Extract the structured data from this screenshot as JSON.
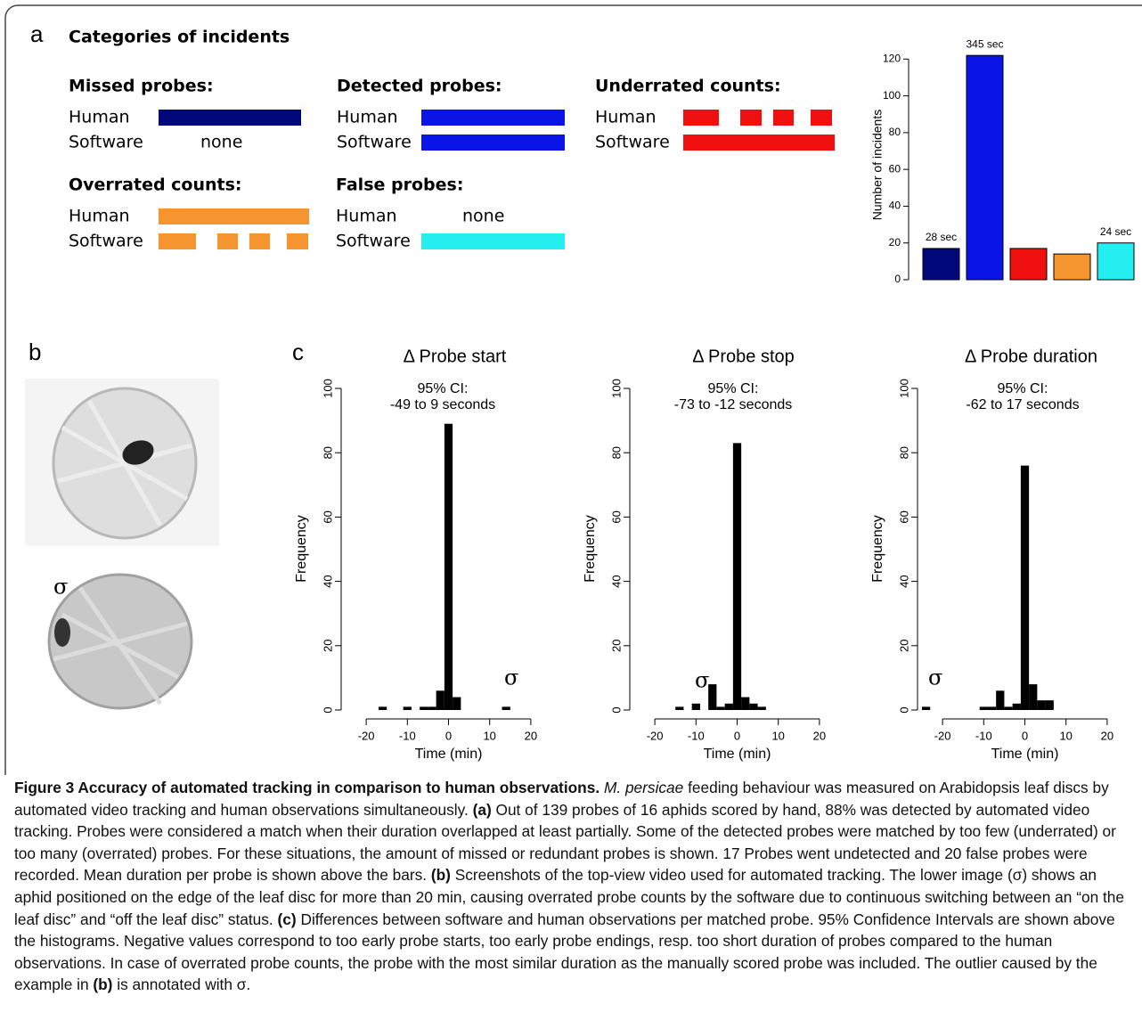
{
  "panel_a": {
    "label": "a",
    "title": "Categories of incidents",
    "groups": [
      {
        "title": "Missed probes:",
        "rows": [
          {
            "name": "Human"
          },
          {
            "name": "Software",
            "note": "none"
          }
        ]
      },
      {
        "title": "Detected probes:",
        "rows": [
          {
            "name": "Human"
          },
          {
            "name": "Software"
          }
        ]
      },
      {
        "title": "Underrated counts:",
        "rows": [
          {
            "name": "Human"
          },
          {
            "name": "Software"
          }
        ]
      },
      {
        "title": "Overrated counts:",
        "rows": [
          {
            "name": "Human"
          },
          {
            "name": "Software"
          }
        ]
      },
      {
        "title": "False probes:",
        "rows": [
          {
            "name": "Human",
            "note": "none"
          },
          {
            "name": "Software"
          }
        ]
      }
    ]
  },
  "panel_b": {
    "label": "b",
    "sigma": "σ"
  },
  "panel_c": {
    "label": "c"
  },
  "chart_data": [
    {
      "type": "bar",
      "ylabel": "Number of incidents",
      "categories": [
        null,
        null,
        null,
        null,
        null
      ],
      "values": [
        17,
        122,
        17,
        14,
        20
      ],
      "colors": [
        "#00087a",
        "#0a14e6",
        "#f01010",
        "#f59530",
        "#25eef0"
      ],
      "bar_labels": [
        "28 sec",
        "345 sec",
        null,
        null,
        "24 sec"
      ],
      "ylim": [
        0,
        125
      ],
      "yticks": [
        0,
        20,
        40,
        60,
        80,
        100,
        120
      ]
    },
    {
      "type": "histogram",
      "title": "Δ Probe start",
      "annotation": [
        "95% CI:",
        "-49 to 9 seconds"
      ],
      "sigma": "σ",
      "xlabel": "Time (min)",
      "ylabel": "Frequency",
      "bins": [
        -25,
        -23,
        -21,
        -19,
        -17,
        -15,
        -13,
        -11,
        -9,
        -7,
        -5,
        -3,
        -1,
        1,
        3,
        5,
        7,
        9,
        11,
        13,
        15,
        17,
        19,
        21,
        23,
        25
      ],
      "values": [
        0,
        0,
        0,
        0,
        1,
        0,
        0,
        1,
        0,
        1,
        1,
        6,
        89,
        4,
        0,
        0,
        0,
        0,
        0,
        1,
        0,
        0,
        0,
        0,
        0
      ],
      "color": "#000000",
      "xlim": [
        -25,
        25
      ],
      "xticks": [
        -20,
        -10,
        0,
        10,
        20
      ],
      "ylim": [
        0,
        100
      ],
      "yticks": [
        0,
        20,
        40,
        60,
        80,
        100
      ]
    },
    {
      "type": "histogram",
      "title": "Δ Probe stop",
      "annotation": [
        "95% CI:",
        "-73 to -12 seconds"
      ],
      "sigma": "σ",
      "xlabel": "Time (min)",
      "ylabel": "Frequency",
      "bins": [
        -25,
        -23,
        -21,
        -19,
        -17,
        -15,
        -13,
        -11,
        -9,
        -7,
        -5,
        -3,
        -1,
        1,
        3,
        5,
        7,
        9,
        11,
        13,
        15,
        17,
        19,
        21,
        23,
        25
      ],
      "values": [
        0,
        0,
        0,
        0,
        0,
        1,
        0,
        2,
        0,
        8,
        1,
        2,
        83,
        4,
        2,
        1,
        0,
        0,
        0,
        0,
        0,
        0,
        0,
        0,
        0
      ],
      "color": "#000000",
      "xlim": [
        -25,
        25
      ],
      "xticks": [
        -20,
        -10,
        0,
        10,
        20
      ],
      "ylim": [
        0,
        100
      ],
      "yticks": [
        0,
        20,
        40,
        60,
        80,
        100
      ]
    },
    {
      "type": "histogram",
      "title": "Δ Probe duration",
      "annotation": [
        "95% CI:",
        "-62 to 17 seconds"
      ],
      "sigma": "σ",
      "xlabel": "Time (min)",
      "ylabel": "Frequency",
      "bins": [
        -25,
        -23,
        -21,
        -19,
        -17,
        -15,
        -13,
        -11,
        -9,
        -7,
        -5,
        -3,
        -1,
        1,
        3,
        5,
        7,
        9,
        11,
        13,
        15,
        17,
        19,
        21,
        23,
        25
      ],
      "values": [
        1,
        0,
        0,
        0,
        0,
        0,
        0,
        1,
        1,
        6,
        1,
        2,
        76,
        8,
        3,
        3,
        0,
        0,
        0,
        0,
        0,
        0,
        0,
        0,
        0
      ],
      "color": "#000000",
      "xlim": [
        -25,
        25
      ],
      "xticks": [
        -20,
        -10,
        0,
        10,
        20
      ],
      "ylim": [
        0,
        100
      ],
      "yticks": [
        0,
        20,
        40,
        60,
        80,
        100
      ]
    }
  ],
  "caption": [
    {
      "text": "Figure 3 Accuracy of automated tracking in comparison to human observations. ",
      "style": "bold"
    },
    {
      "text": "M. persicae",
      "style": "italic"
    },
    {
      "text": " feeding behaviour was measured on Arabidopsis leaf discs by automated video tracking and human observations simultaneously. "
    },
    {
      "text": "(a)",
      "style": "bold"
    },
    {
      "text": " Out of 139 probes of 16 aphids scored by hand, 88% was detected by automated video tracking. Probes were considered a match when their duration overlapped at least partially. Some of the detected probes were matched by too few (underrated) or too many (overrated) probes. For these situations, the amount of missed or redundant probes is shown. 17 Probes went undetected and 20 false probes were recorded. Mean duration per probe is shown above the bars. "
    },
    {
      "text": "(b)",
      "style": "bold"
    },
    {
      "text": " Screenshots of the top-view video used for automated tracking. The lower image (σ) shows an aphid positioned on the edge of the leaf disc for more than 20 min, causing overrated probe counts by the software due to continuous switching between an “on the leaf disc” and “off the leaf disc” status. "
    },
    {
      "text": "(c)",
      "style": "bold"
    },
    {
      "text": " Differences between software and human observations per matched probe. 95% Confidence Intervals are shown above the histograms. Negative values correspond to too early probe starts, too early probe endings, resp. too short duration of probes compared to the human observations. In case of overrated probe counts, the probe with the most similar duration as the manually scored probe was included. The outlier caused by the example in "
    },
    {
      "text": "(b)",
      "style": "bold"
    },
    {
      "text": " is annotated with σ."
    }
  ]
}
